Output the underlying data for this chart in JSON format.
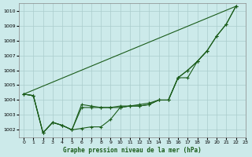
{
  "title": "Graphe pression niveau de la mer (hPa)",
  "background_color": "#cceaea",
  "grid_color": "#aacccc",
  "line_color": "#1a5c1a",
  "xlim": [
    -0.5,
    23
  ],
  "ylim": [
    1001.5,
    1010.5
  ],
  "xticks": [
    0,
    1,
    2,
    3,
    4,
    5,
    6,
    7,
    8,
    9,
    10,
    11,
    12,
    13,
    14,
    15,
    16,
    17,
    18,
    19,
    20,
    21,
    22,
    23
  ],
  "yticks": [
    1002,
    1003,
    1004,
    1005,
    1006,
    1007,
    1008,
    1009,
    1010
  ],
  "series": {
    "s1_no_marker": [
      1004.4,
      null,
      null,
      null,
      null,
      null,
      null,
      null,
      null,
      null,
      null,
      null,
      null,
      null,
      null,
      null,
      null,
      null,
      null,
      null,
      null,
      null,
      1010.3,
      null
    ],
    "s2_with_marker": [
      1004.4,
      1004.3,
      1001.8,
      1002.5,
      1002.3,
      1002.0,
      1002.1,
      1002.2,
      1002.2,
      1002.7,
      1003.5,
      1003.6,
      1003.6,
      1003.7,
      1004.0,
      1004.0,
      1005.5,
      1005.5,
      1006.6,
      1007.3,
      null,
      null,
      null,
      null
    ],
    "s3_with_marker": [
      1004.4,
      1004.3,
      1001.8,
      1002.5,
      1002.3,
      1002.0,
      1003.7,
      1003.6,
      1003.5,
      1003.5,
      1003.6,
      1003.6,
      1003.6,
      1003.7,
      1004.0,
      1004.0,
      1005.5,
      1006.0,
      1006.6,
      1007.3,
      1008.3,
      1009.1,
      1010.3,
      null
    ],
    "s4_with_marker": [
      1004.4,
      1004.3,
      1001.8,
      1002.5,
      1002.3,
      1002.0,
      1003.5,
      1003.5,
      1003.5,
      1003.5,
      1003.5,
      1003.6,
      1003.7,
      1003.8,
      1004.0,
      1004.0,
      1005.5,
      1006.0,
      1006.6,
      1007.3,
      1008.3,
      1009.1,
      1010.3,
      null
    ]
  }
}
